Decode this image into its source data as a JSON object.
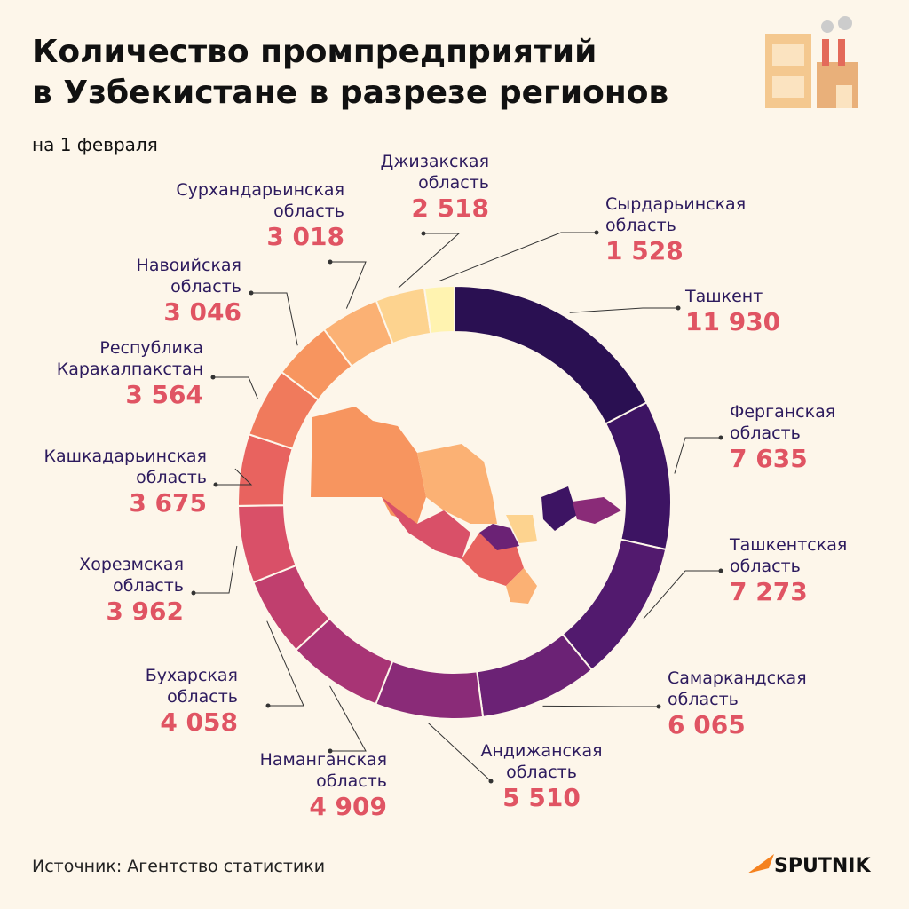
{
  "chart_data": {
    "type": "donut",
    "title": [
      "Количество промпредприятий",
      "в Узбекистане в разрезе регионов"
    ],
    "subtitle": "на 1 февраля",
    "categories": [
      "Ташкент",
      "Ферганская область",
      "Ташкентская область",
      "Самаркандская область",
      "Андижанская область",
      "Наманганская область",
      "Бухарская область",
      "Хорезмская область",
      "Кашкадарьинская область",
      "Республика Каракалпакстан",
      "Навоийская область",
      "Сурхандарьинская область",
      "Джизакская область",
      "Сырдарьинская область"
    ],
    "values": [
      11930,
      7635,
      7273,
      6065,
      5510,
      4909,
      4058,
      3962,
      3675,
      3564,
      3046,
      3018,
      2518,
      1528
    ],
    "value_labels": [
      "11 930",
      "7 635",
      "7 273",
      "6 065",
      "5 510",
      "4 909",
      "4 058",
      "3 962",
      "3 675",
      "3 564",
      "3 046",
      "3 018",
      "2 518",
      "1 528"
    ],
    "colors": [
      "#2a1052",
      "#3d1463",
      "#521a6e",
      "#6b2275",
      "#8a2b78",
      "#a83475",
      "#c03f6e",
      "#d95068",
      "#e8635f",
      "#f07a5c",
      "#f7955f",
      "#fbb174",
      "#fdd38f",
      "#fff3b0"
    ],
    "source": "Источник: Агентство статистики",
    "logo": "SPUTNIK"
  }
}
